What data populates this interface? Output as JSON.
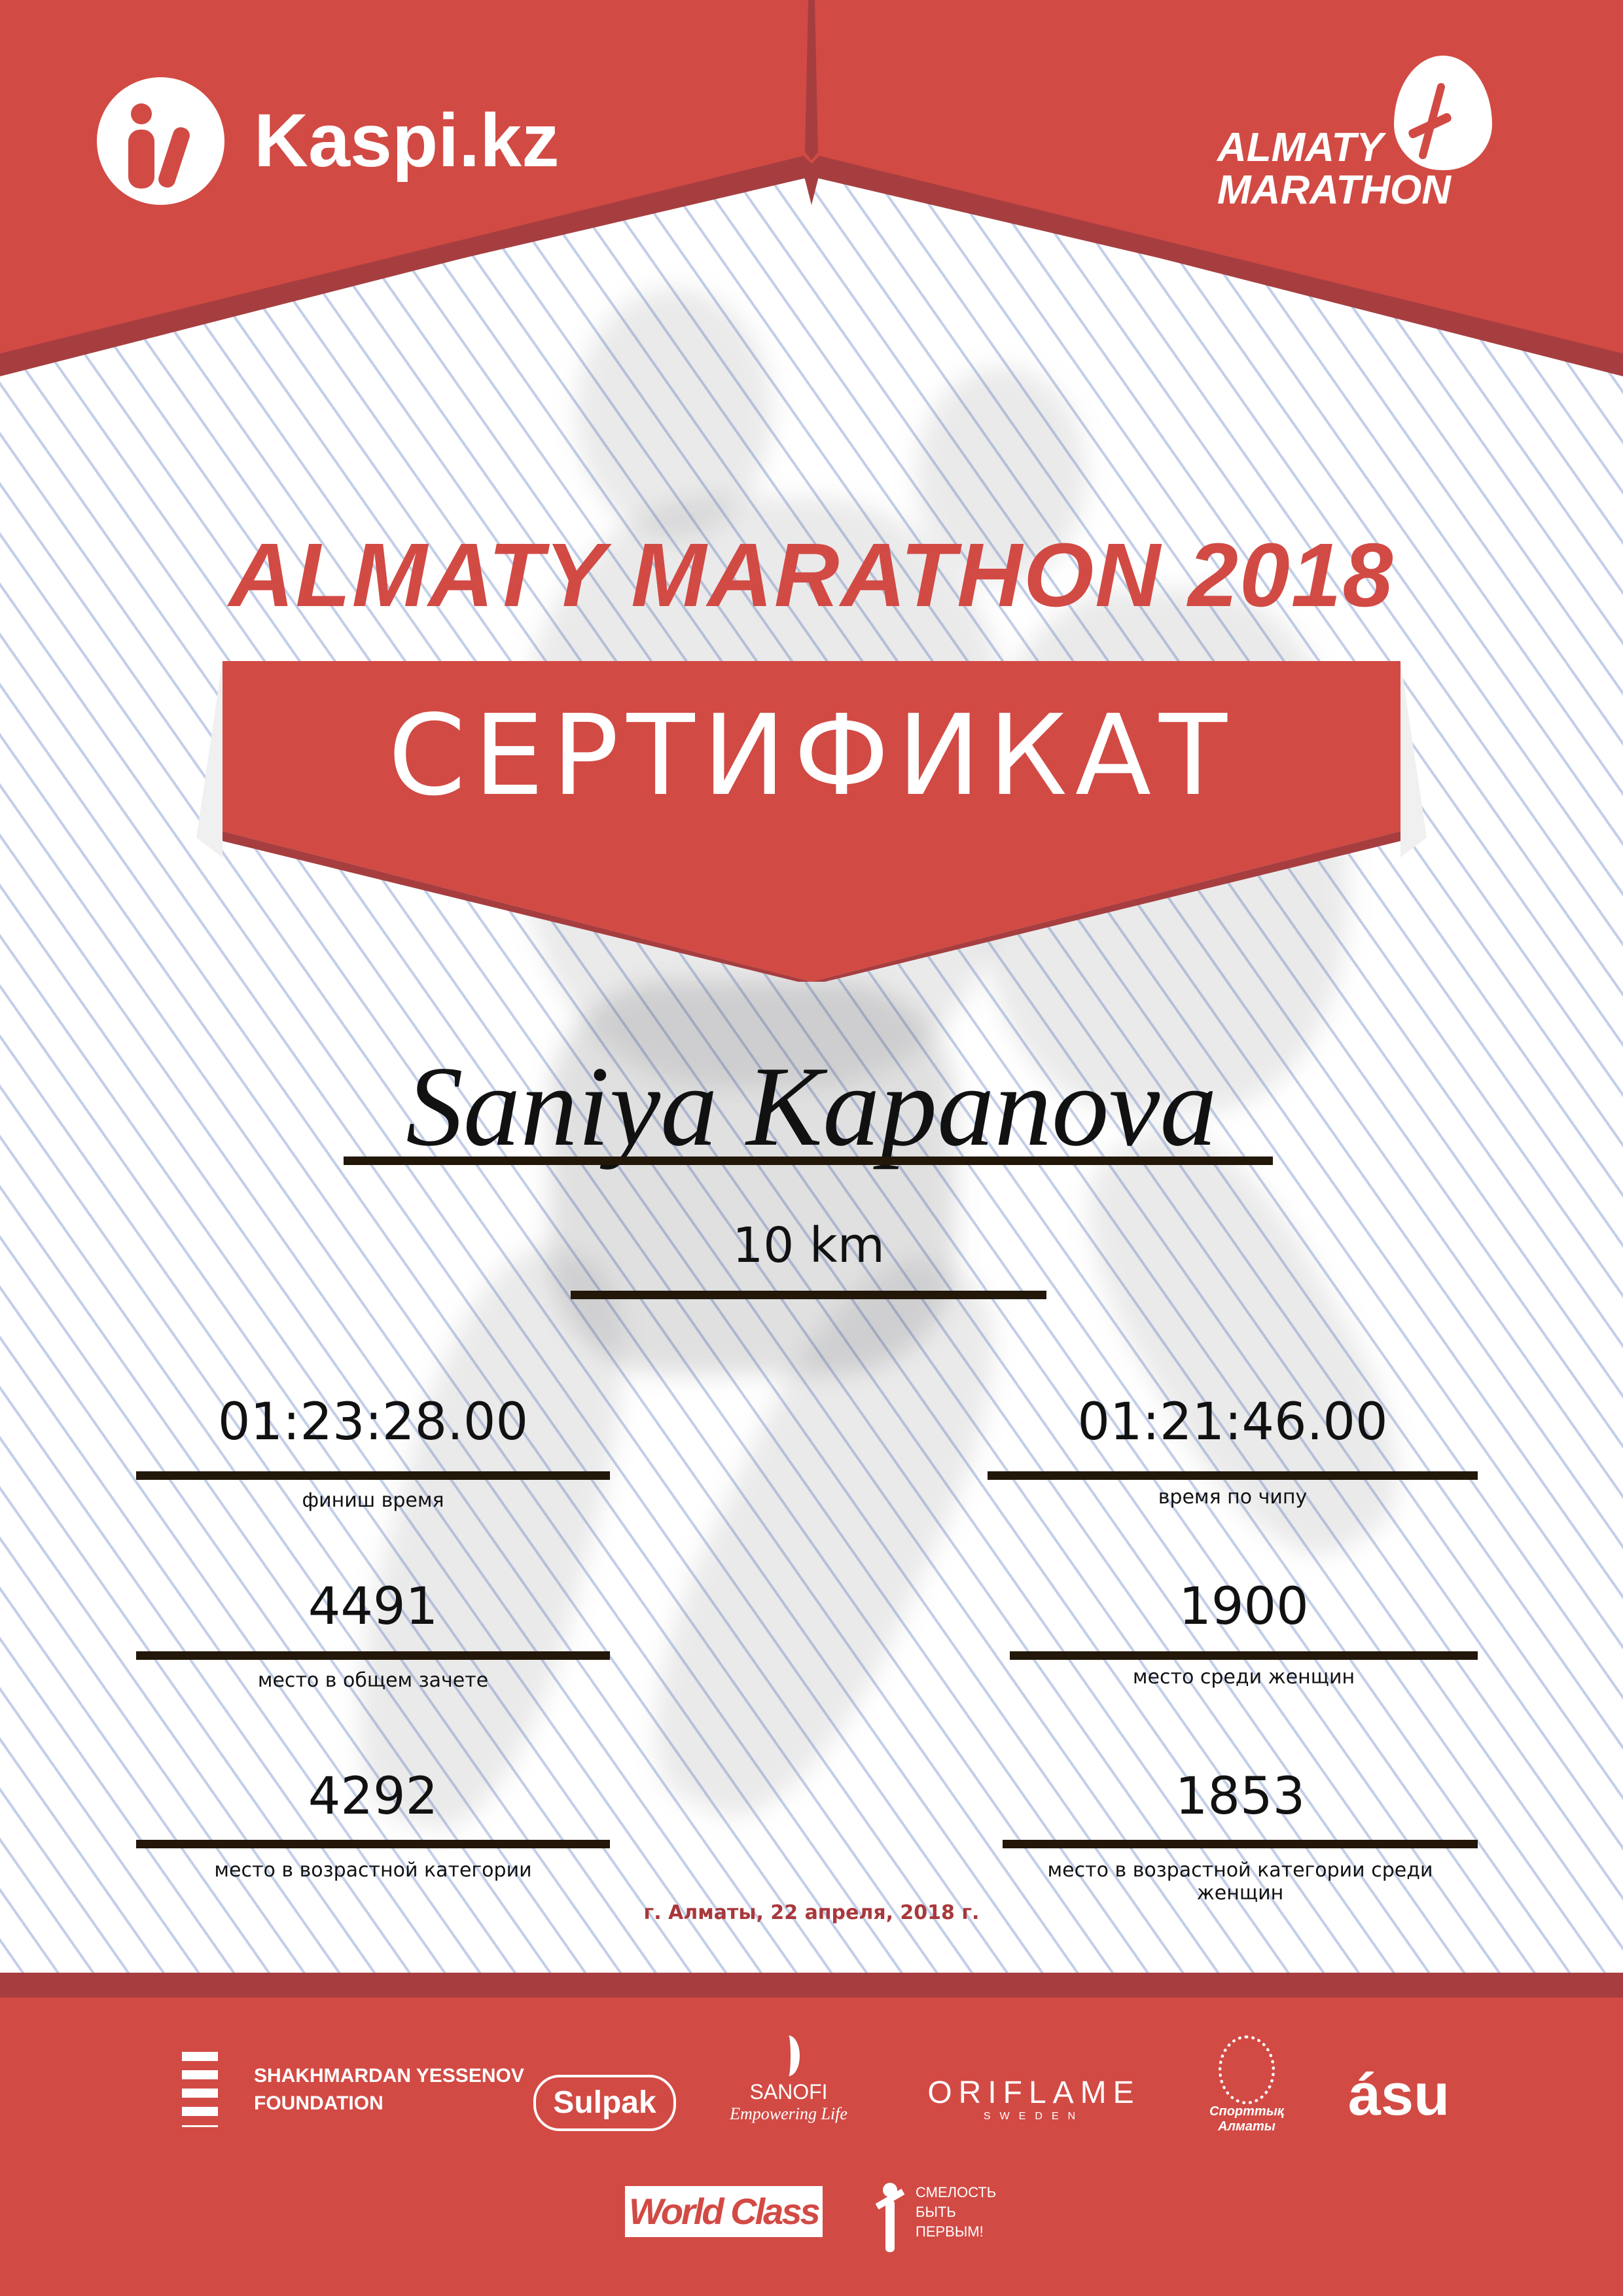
{
  "colors": {
    "brand_red": "#d24a44",
    "dark_red": "#a63e40",
    "rule": "#221708",
    "date": "#a8383c"
  },
  "header": {
    "kaspi_logo": "Kaspi.kz",
    "marathon_logo": [
      "ALMATY",
      "MARATHON"
    ]
  },
  "title": "ALMATY MARATHON 2018",
  "banner": "СЕРТИФИКАТ",
  "participant": {
    "name": "Saniya Kapanova",
    "distance": "10 km"
  },
  "results": [
    {
      "value": "01:23:28.00",
      "label": "финиш время"
    },
    {
      "value": "01:21:46.00",
      "label": "время по чипу"
    },
    {
      "value": "4491",
      "label": "место в общем зачете"
    },
    {
      "value": "1900",
      "label": "место среди женщин"
    },
    {
      "value": "4292",
      "label": "место в возрастной категории"
    },
    {
      "value": "1853",
      "label": "место в возрастной категории среди женщин"
    }
  ],
  "date": "г. Алматы, 22 апреля, 2018 г.",
  "sponsors": {
    "yessenov": [
      "SHAKHMARDAN YESSENOV",
      "FOUNDATION"
    ],
    "sulpak": "Sulpak",
    "sanofi": [
      "SANOFI",
      "Empowering Life"
    ],
    "oriflame": [
      "ORIFLAME",
      "SWEDEN"
    ],
    "sport_almaty": [
      "Спорттық",
      "Алматы"
    ],
    "asu": "ásu",
    "worldclass": "World Class",
    "fund": [
      "СМЕЛОСТЬ",
      "БЫТЬ",
      "ПЕРВЫМ!"
    ]
  }
}
